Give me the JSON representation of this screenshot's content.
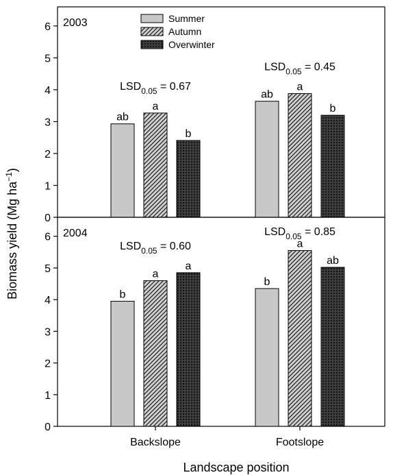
{
  "chart_data": {
    "type": "bar",
    "layout": "two stacked panels sharing x axis",
    "categories": [
      "Backslope",
      "Footslope"
    ],
    "xlabel": "Landscape position",
    "ylabel": {
      "base": "Biomass yield (Mg ha",
      "sup": "−1",
      "tail": ")"
    },
    "ylim": [
      0,
      6.6
    ],
    "yticks": [
      0,
      1,
      2,
      3,
      4,
      5,
      6
    ],
    "grid": false,
    "legend": {
      "placement": "top-center (upper panel)",
      "entries": [
        "Summer",
        "Autumn",
        "Overwinter"
      ]
    },
    "series_styles": [
      {
        "name": "Summer",
        "fill": "#c8c8c8",
        "pattern": "solid"
      },
      {
        "name": "Autumn",
        "fill": "#d0d0d0",
        "pattern": "diagonal-hatch"
      },
      {
        "name": "Overwinter",
        "fill": "#3a3a3a",
        "pattern": "crosshatch"
      }
    ],
    "panels": [
      {
        "label": "2003",
        "series": [
          {
            "name": "Summer",
            "values": [
              2.93,
              3.64
            ]
          },
          {
            "name": "Autumn",
            "values": [
              3.27,
              3.88
            ]
          },
          {
            "name": "Overwinter",
            "values": [
              2.41,
              3.2
            ]
          }
        ],
        "significance": [
          [
            "ab",
            "a",
            "b"
          ],
          [
            "ab",
            "a",
            "b"
          ]
        ],
        "lsd": [
          {
            "prefix": "LSD",
            "sub": "0.05",
            "value": " = 0.67"
          },
          {
            "prefix": "LSD",
            "sub": "0.05",
            "value": " = 0.45"
          }
        ]
      },
      {
        "label": "2004",
        "series": [
          {
            "name": "Summer",
            "values": [
              3.95,
              4.35
            ]
          },
          {
            "name": "Autumn",
            "values": [
              4.6,
              5.55
            ]
          },
          {
            "name": "Overwinter",
            "values": [
              4.85,
              5.02
            ]
          }
        ],
        "significance": [
          [
            "b",
            "a",
            "a"
          ],
          [
            "b",
            "a",
            "ab"
          ]
        ],
        "lsd": [
          {
            "prefix": "LSD",
            "sub": "0.05",
            "value": " = 0.60"
          },
          {
            "prefix": "LSD",
            "sub": "0.05",
            "value": " = 0.85"
          }
        ]
      }
    ]
  }
}
